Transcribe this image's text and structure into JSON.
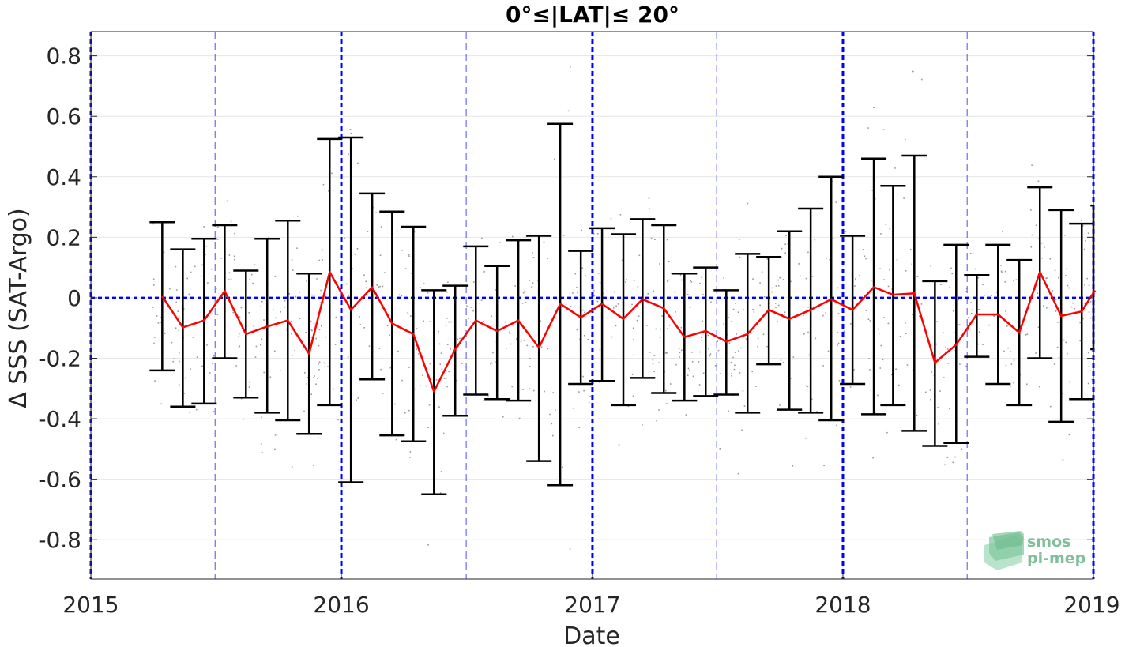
{
  "chart_data": {
    "type": "line",
    "title": "0°≤|LAT|≤ 20°",
    "xlabel": "Date",
    "ylabel": "Δ SSS (SAT-Argo)",
    "xlim": [
      "2015-01-01",
      "2019-01-01"
    ],
    "ylim": [
      -0.93,
      0.88
    ],
    "x_tick_labels": [
      "2015",
      "2016",
      "2017",
      "2018",
      "2019"
    ],
    "y_ticks": [
      -0.8,
      -0.6,
      -0.4,
      -0.2,
      0,
      0.2,
      0.4,
      0.6,
      0.8
    ],
    "y_tick_labels": [
      "-0.8",
      "-0.6",
      "-0.4",
      "-0.2",
      "0",
      "0.2",
      "0.4",
      "0.6",
      "0.8"
    ],
    "grid": true,
    "year_lines": [
      "2015-01-01",
      "2016-01-01",
      "2017-01-01",
      "2018-01-01",
      "2019-01-01"
    ],
    "halfyear_lines": [
      "2015-07-01",
      "2016-07-01",
      "2017-07-01",
      "2018-07-01"
    ],
    "zero_line": 0,
    "colors": {
      "mean_line": "#ff0000",
      "error_bars": "#000000",
      "year_lines": "#0000ff",
      "halfyear_lines": "#4d4dff",
      "scatter": "#9a9a9a",
      "grid": "#e6e6e6",
      "logo": "#7fbf9a"
    },
    "series": [
      {
        "kind": "monthly-mean-with-std",
        "dates": [
          "2015-04-15",
          "2015-05-15",
          "2015-06-15",
          "2015-07-15",
          "2015-08-15",
          "2015-09-15",
          "2015-10-15",
          "2015-11-15",
          "2015-12-15",
          "2016-01-15",
          "2016-02-15",
          "2016-03-15",
          "2016-04-15",
          "2016-05-15",
          "2016-06-15",
          "2016-07-15",
          "2016-08-15",
          "2016-09-15",
          "2016-10-15",
          "2016-11-15",
          "2016-12-15",
          "2017-01-15",
          "2017-02-15",
          "2017-03-15",
          "2017-04-15",
          "2017-05-15",
          "2017-06-15",
          "2017-07-15",
          "2017-08-15",
          "2017-09-15",
          "2017-10-15",
          "2017-11-15",
          "2017-12-15",
          "2018-01-15",
          "2018-02-15",
          "2018-03-15",
          "2018-04-15",
          "2018-05-15",
          "2018-06-15",
          "2018-07-15",
          "2018-08-15",
          "2018-09-15",
          "2018-10-15",
          "2018-11-15",
          "2018-12-15",
          "2019-01-15"
        ],
        "mean": [
          0.005,
          -0.098,
          -0.075,
          0.022,
          -0.12,
          -0.095,
          -0.075,
          -0.185,
          0.085,
          -0.04,
          0.035,
          -0.085,
          -0.12,
          -0.31,
          -0.17,
          -0.075,
          -0.11,
          -0.075,
          -0.165,
          -0.02,
          -0.065,
          -0.02,
          -0.07,
          -0.005,
          -0.035,
          -0.13,
          -0.11,
          -0.145,
          -0.12,
          -0.04,
          -0.07,
          -0.04,
          -0.005,
          -0.04,
          0.035,
          0.01,
          0.015,
          -0.215,
          -0.155,
          -0.055,
          -0.055,
          -0.115,
          0.085,
          -0.06,
          -0.045,
          0.025
        ],
        "upper": [
          0.25,
          0.16,
          0.195,
          0.24,
          0.09,
          0.195,
          0.255,
          0.08,
          0.525,
          0.53,
          0.345,
          0.285,
          0.235,
          0.025,
          0.04,
          0.17,
          0.105,
          0.19,
          0.205,
          0.575,
          0.155,
          0.23,
          0.21,
          0.26,
          0.24,
          0.08,
          0.1,
          0.025,
          0.145,
          0.135,
          0.22,
          0.295,
          0.4,
          0.205,
          0.46,
          0.37,
          0.47,
          0.055,
          0.175,
          0.075,
          0.175,
          0.125,
          0.365,
          0.29,
          0.245,
          0.305
        ],
        "lower": [
          -0.24,
          -0.36,
          -0.35,
          -0.2,
          -0.33,
          -0.38,
          -0.405,
          -0.45,
          -0.355,
          -0.61,
          -0.27,
          -0.455,
          -0.475,
          -0.65,
          -0.39,
          -0.32,
          -0.335,
          -0.34,
          -0.54,
          -0.62,
          -0.285,
          -0.275,
          -0.355,
          -0.265,
          -0.315,
          -0.34,
          -0.325,
          -0.32,
          -0.38,
          -0.22,
          -0.37,
          -0.38,
          -0.405,
          -0.285,
          -0.385,
          -0.355,
          -0.44,
          -0.49,
          -0.48,
          -0.195,
          -0.285,
          -0.355,
          -0.2,
          -0.41,
          -0.335,
          -0.17
        ]
      }
    ],
    "scatter_note_points": 900
  },
  "logo": {
    "line1": "smos",
    "line2": "pi-mep"
  }
}
